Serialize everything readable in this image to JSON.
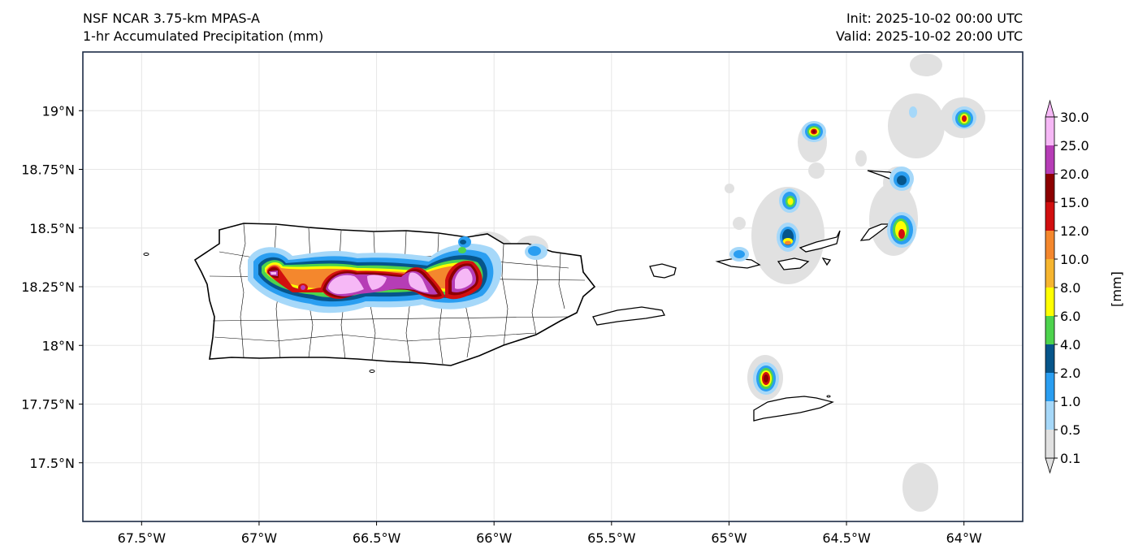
{
  "header": {
    "model": "NSF NCAR 3.75-km MPAS-A",
    "field": "1-hr Accumulated Precipitation (mm)",
    "init": "Init: 2025-10-02 00:00 UTC",
    "valid": "Valid: 2025-10-02 20:00 UTC"
  },
  "axes": {
    "x_ticks": [
      "67.5°W",
      "67°W",
      "66.5°W",
      "66°W",
      "65.5°W",
      "65°W",
      "64.5°W",
      "64°W"
    ],
    "x_values": [
      -67.5,
      -67.0,
      -66.5,
      -66.0,
      -65.5,
      -65.0,
      -64.5,
      -64.0
    ],
    "y_ticks": [
      "19°N",
      "18.75°N",
      "18.5°N",
      "18.25°N",
      "18°N",
      "17.75°N",
      "17.5°N"
    ],
    "y_values": [
      19.0,
      18.75,
      18.5,
      18.25,
      18.0,
      17.75,
      17.5
    ],
    "lon_range": [
      -67.75,
      -63.75
    ],
    "lat_range": [
      17.25,
      19.25
    ]
  },
  "colorbar": {
    "label": "[mm]",
    "levels": [
      "0.1",
      "0.5",
      "1.0",
      "2.0",
      "4.0",
      "6.0",
      "8.0",
      "10.0",
      "12.0",
      "15.0",
      "20.0",
      "25.0",
      "30.0"
    ],
    "colors": [
      "#e1e1e1",
      "#a6d8f9",
      "#2a9ef1",
      "#06558a",
      "#4dd34d",
      "#ffff00",
      "#f6b52f",
      "#f4872d",
      "#d10f0f",
      "#8c0000",
      "#b63db6",
      "#f6b8f6"
    ]
  },
  "colors": {
    "frame": "#1c2b45",
    "grid": "#e6e6e6",
    "land_outline": "#000000"
  }
}
